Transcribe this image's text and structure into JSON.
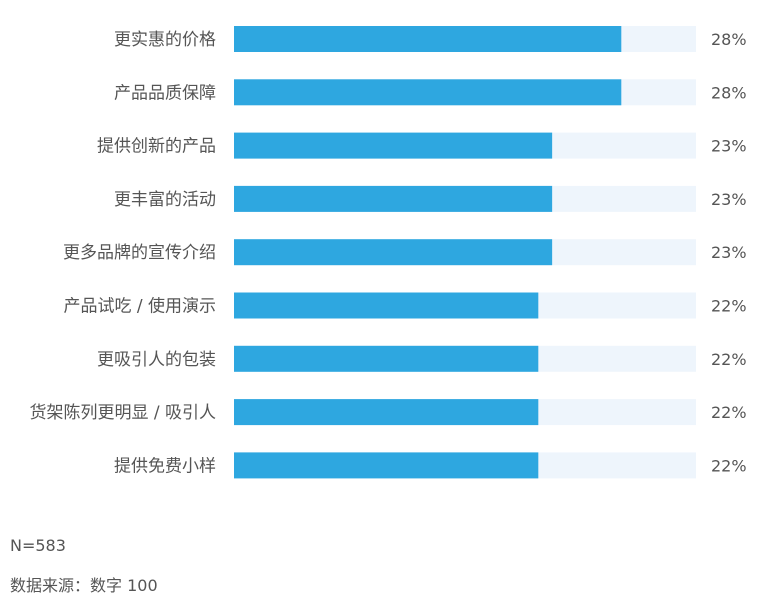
{
  "chart_data": {
    "type": "bar",
    "orientation": "horizontal",
    "categories": [
      "更实惠的价格",
      "产品品质保障",
      "提供创新的产品",
      "更丰富的活动",
      "更多品牌的宣传介绍",
      "产品试吃 / 使用演示",
      "更吸引人的包装",
      "货架陈列更明显 / 吸引人",
      "提供免费小样"
    ],
    "values": [
      28,
      28,
      23,
      23,
      23,
      22,
      22,
      22,
      22
    ],
    "value_labels": [
      "28%",
      "28%",
      "23%",
      "23%",
      "23%",
      "22%",
      "22%",
      "22%",
      "22%"
    ],
    "xlim": [
      0,
      33.4
    ],
    "bar_color": "#2ea7e0",
    "track_color": "#eef5fc",
    "title": "",
    "xlabel": "",
    "ylabel": ""
  },
  "footer": {
    "sample_size": "N=583",
    "source": "数据来源：数字 100"
  }
}
